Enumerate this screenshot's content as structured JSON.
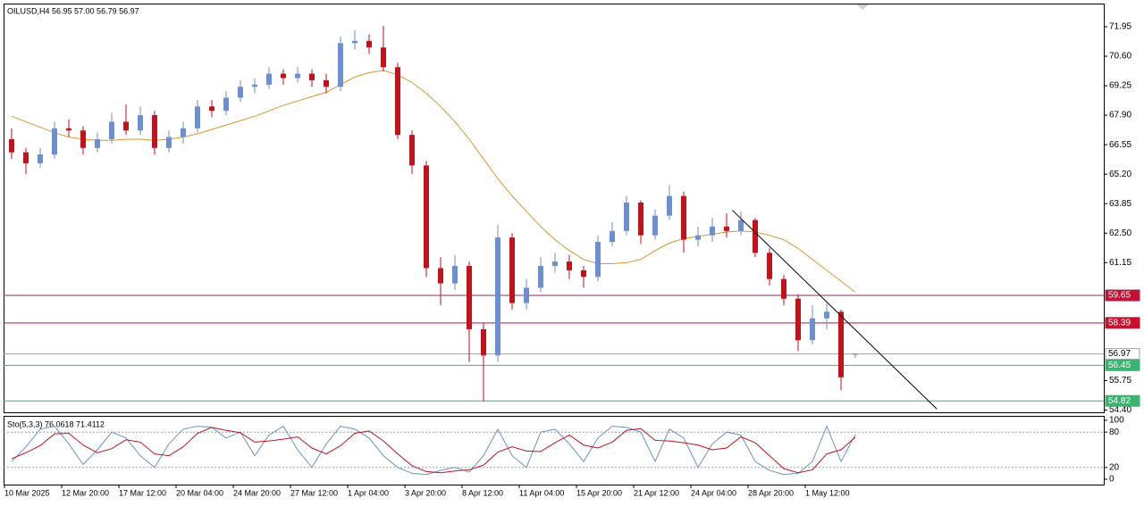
{
  "chart_data": {
    "type": "candlestick",
    "title": "OILUSD,H4  56.95 57.00 56.79 56.97",
    "categories": [
      "10 Mar 2025",
      null,
      null,
      null,
      "12 Mar 20:00",
      null,
      null,
      null,
      "17 Mar 12:00",
      null,
      null,
      null,
      "20 Mar 04:00",
      null,
      null,
      null,
      "24 Mar 20:00",
      null,
      null,
      null,
      "27 Mar 12:00",
      null,
      null,
      null,
      "1 Apr 04:00",
      null,
      null,
      null,
      "3 Apr 20:00",
      null,
      null,
      null,
      "8 Apr 12:00",
      null,
      null,
      null,
      "11 Apr 04:00",
      null,
      null,
      null,
      "15 Apr 20:00",
      null,
      null,
      null,
      "21 Apr 12:00",
      null,
      null,
      null,
      "24 Apr 04:00",
      null,
      null,
      null,
      "28 Apr 20:00",
      null,
      null,
      null,
      "1 May 12:00",
      null,
      null,
      null
    ],
    "open": [
      66.8,
      66.2,
      65.7,
      66.1,
      67.3,
      67.2,
      66.4,
      66.8,
      67.6,
      67.2,
      67.9,
      66.4,
      66.9,
      67.3,
      68.3,
      68.1,
      68.7,
      69.2,
      69.3,
      69.8,
      69.6,
      69.8,
      69.5,
      69.2,
      71.2,
      71.3,
      71.0,
      70.1,
      67.0,
      65.6,
      60.9,
      60.2,
      61.0,
      58.1,
      56.9,
      62.3,
      59.3,
      60.0,
      61.0,
      61.2,
      60.8,
      60.5,
      62.1,
      62.6,
      63.9,
      62.4,
      63.3,
      64.2,
      62.2,
      62.4,
      62.8,
      62.6,
      63.1,
      61.6,
      60.4,
      59.5,
      57.6,
      58.6,
      58.9,
      56.95
    ],
    "high": [
      67.3,
      66.4,
      66.4,
      67.6,
      67.7,
      67.4,
      67.1,
      68.0,
      68.4,
      68.3,
      68.1,
      67.2,
      67.6,
      68.6,
      68.6,
      69.0,
      69.5,
      69.6,
      70.1,
      70.0,
      70.1,
      70.0,
      69.8,
      71.5,
      71.8,
      71.6,
      72.0,
      70.3,
      67.2,
      65.8,
      61.4,
      61.5,
      61.2,
      58.4,
      62.9,
      62.5,
      60.4,
      61.4,
      61.6,
      61.5,
      61.0,
      62.4,
      63.0,
      64.2,
      64.0,
      63.6,
      64.7,
      64.4,
      62.8,
      63.2,
      63.4,
      63.5,
      63.2,
      61.8,
      60.6,
      59.7,
      59.2,
      59.3,
      59.0,
      57.0
    ],
    "low": [
      65.9,
      65.2,
      65.5,
      65.9,
      66.9,
      66.1,
      66.2,
      66.6,
      67.0,
      67.0,
      66.1,
      66.2,
      66.6,
      67.1,
      67.8,
      67.9,
      68.5,
      68.9,
      69.1,
      69.3,
      69.4,
      69.2,
      68.9,
      69.0,
      70.9,
      70.7,
      69.9,
      66.8,
      65.2,
      60.5,
      59.2,
      59.9,
      56.6,
      54.8,
      56.6,
      59.0,
      59.0,
      59.8,
      60.7,
      60.4,
      60.0,
      60.3,
      61.9,
      62.4,
      62.0,
      62.2,
      63.1,
      61.6,
      61.9,
      62.1,
      62.3,
      62.4,
      61.4,
      60.1,
      59.2,
      57.1,
      57.4,
      58.1,
      55.3,
      56.79
    ],
    "close": [
      66.2,
      65.7,
      66.1,
      67.3,
      67.2,
      66.4,
      66.8,
      67.6,
      67.2,
      67.9,
      66.4,
      66.9,
      67.3,
      68.3,
      68.1,
      68.7,
      69.2,
      69.3,
      69.8,
      69.6,
      69.8,
      69.5,
      69.2,
      71.2,
      71.3,
      71.0,
      70.1,
      67.0,
      65.6,
      60.9,
      60.2,
      61.0,
      58.1,
      56.9,
      62.3,
      59.3,
      60.0,
      61.0,
      61.2,
      60.8,
      60.5,
      62.1,
      62.6,
      63.9,
      62.4,
      63.3,
      64.2,
      62.2,
      62.4,
      62.8,
      62.6,
      63.1,
      61.6,
      60.4,
      59.5,
      57.6,
      58.6,
      58.9,
      55.9,
      56.97
    ],
    "up_color": "#6b8fcf",
    "down_color": "#c0131b",
    "moving_average": {
      "color": "#e0932f",
      "values": [
        67.85,
        67.6,
        67.35,
        67.1,
        66.9,
        66.8,
        66.75,
        66.75,
        66.8,
        66.8,
        66.75,
        66.8,
        66.9,
        67.05,
        67.25,
        67.45,
        67.65,
        67.85,
        68.1,
        68.35,
        68.55,
        68.75,
        68.95,
        69.3,
        69.65,
        69.85,
        69.95,
        69.75,
        69.4,
        68.9,
        68.3,
        67.6,
        66.8,
        65.9,
        65.0,
        64.2,
        63.5,
        62.8,
        62.2,
        61.7,
        61.3,
        61.1,
        61.1,
        61.15,
        61.3,
        61.7,
        62.05,
        62.25,
        62.35,
        62.45,
        62.55,
        62.6,
        62.55,
        62.4,
        62.2,
        61.8,
        61.3,
        60.8,
        60.3,
        59.8
      ]
    },
    "trendline": {
      "color": "#000000",
      "x": [
        50.4,
        64.7
      ],
      "y": [
        63.55,
        54.45
      ]
    },
    "levels": [
      {
        "value": 59.65,
        "color": "#8e2a6b",
        "label_color": "#c8102e",
        "text_color": "#ffffff"
      },
      {
        "value": 58.39,
        "color": "#c8102e",
        "label_color": "#c8102e",
        "text_color": "#ffffff"
      },
      {
        "value": 56.97,
        "color": "#a0a0a0",
        "label_color": "#ffffff",
        "text_color": "#000000"
      },
      {
        "value": 56.45,
        "color": "#3cb371",
        "label_color": "#3cb371",
        "text_color": "#ffffff"
      },
      {
        "value": 54.82,
        "color": "#3cb371",
        "label_color": "#3cb371",
        "text_color": "#ffffff"
      }
    ],
    "ylim": [
      54.38,
      72.97
    ],
    "yticks": [
      71.95,
      {
        "value": 70.6,
        "label": "70.60"
      },
      69.25,
      {
        "value": 67.9,
        "label": "67.90"
      },
      66.55,
      {
        "value": 65.2,
        "label": "65.20"
      },
      63.85,
      {
        "value": 62.5,
        "label": "62.50"
      },
      61.15,
      55.75,
      {
        "value": 54.4,
        "label": "54.40"
      }
    ],
    "indicator": {
      "title": "Sto(5,3,3) 76.0618 71.4112",
      "ylim": [
        0,
        100
      ],
      "yticks": [
        100,
        80,
        20,
        0
      ],
      "levels": [
        80,
        20
      ],
      "series": [
        {
          "color": "#6b8fcf",
          "values": [
            30,
            55,
            85,
            90,
            60,
            25,
            50,
            80,
            70,
            40,
            20,
            60,
            85,
            90,
            88,
            70,
            80,
            40,
            75,
            90,
            50,
            20,
            60,
            90,
            85,
            70,
            40,
            20,
            10,
            8,
            15,
            20,
            12,
            40,
            85,
            40,
            20,
            80,
            85,
            60,
            30,
            70,
            90,
            88,
            80,
            30,
            85,
            70,
            20,
            60,
            80,
            75,
            30,
            15,
            8,
            10,
            30,
            90,
            30,
            76.0618
          ]
        },
        {
          "color": "#c0131b",
          "values": [
            35,
            45,
            57,
            77,
            78,
            58,
            45,
            52,
            67,
            63,
            43,
            40,
            55,
            78,
            88,
            83,
            79,
            63,
            65,
            68,
            72,
            53,
            43,
            57,
            78,
            82,
            65,
            43,
            23,
            13,
            11,
            14,
            16,
            24,
            46,
            55,
            48,
            47,
            62,
            75,
            58,
            53,
            63,
            83,
            86,
            66,
            65,
            62,
            58,
            50,
            53,
            72,
            62,
            40,
            18,
            11,
            16,
            43,
            50,
            71.4112
          ]
        }
      ]
    }
  }
}
